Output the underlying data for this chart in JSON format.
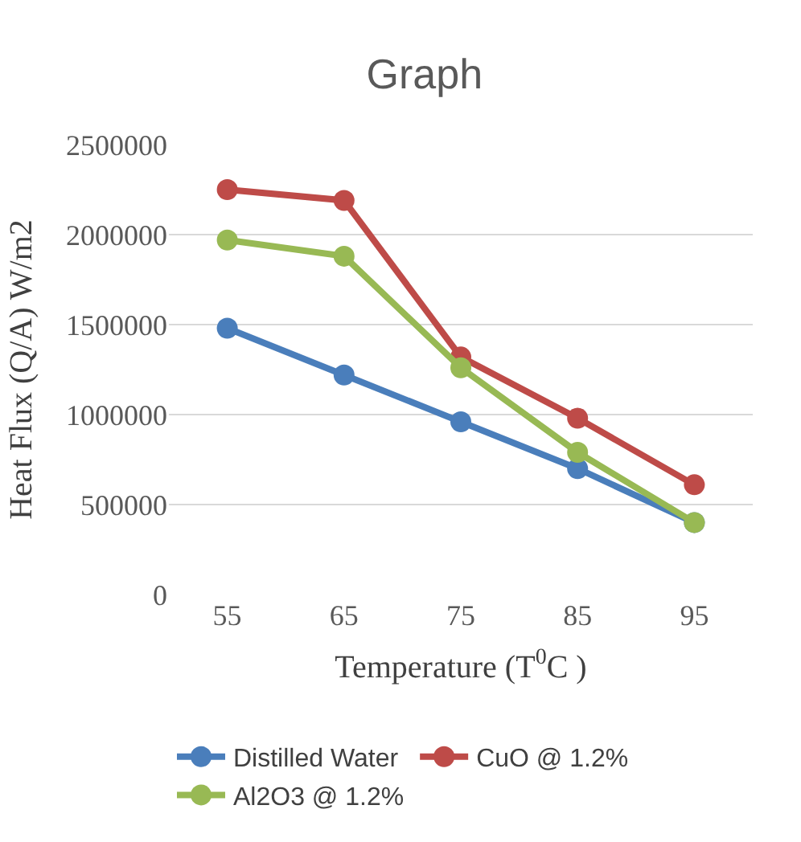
{
  "chart_data": {
    "type": "line",
    "title": "Graph",
    "xlabel": "Temperature (T$^{0}$C )",
    "ylabel": "Heat Flux (Q/A) W/m2",
    "categories": [
      "55",
      "65",
      "75",
      "85",
      "95"
    ],
    "series": [
      {
        "name": "Distilled Water",
        "color": "#4a7ebb",
        "values": [
          1480000,
          1220000,
          960000,
          700000,
          400000
        ]
      },
      {
        "name": "CuO @ 1.2%",
        "color": "#be4b48",
        "values": [
          2250000,
          2190000,
          1320000,
          980000,
          610000
        ]
      },
      {
        "name": "Al2O3 @ 1.2%",
        "color": "#98b954",
        "values": [
          1970000,
          1880000,
          1260000,
          790000,
          400000
        ]
      }
    ],
    "ylim": [
      0,
      2500000
    ],
    "yticks": [
      0,
      500000,
      1000000,
      1500000,
      2000000,
      2500000
    ],
    "grid": "y",
    "legend": "bottom",
    "marker": "circle",
    "line_style": "solid"
  }
}
